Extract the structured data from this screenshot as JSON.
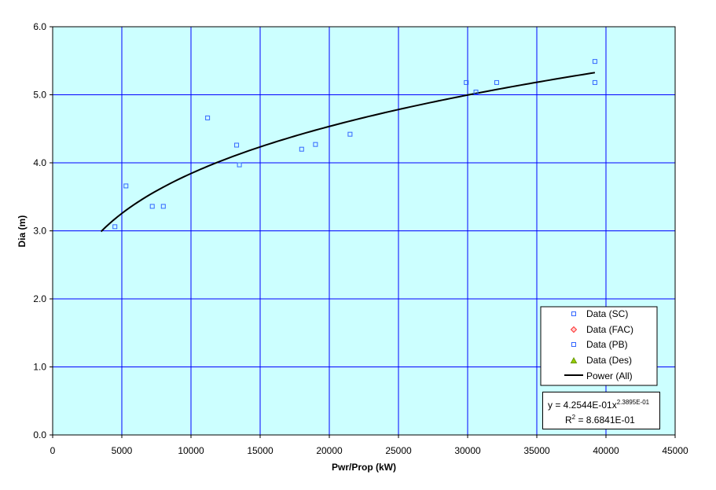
{
  "chart_data": {
    "type": "scatter",
    "xlabel": "Pwr/Prop (kW)",
    "ylabel": "Dia (m)",
    "xlim": [
      0,
      45000
    ],
    "ylim": [
      0,
      6
    ],
    "x_ticks": [
      "0",
      "5000",
      "10000",
      "15000",
      "20000",
      "25000",
      "30000",
      "35000",
      "40000",
      "45000"
    ],
    "y_ticks": [
      "0.0",
      "1.0",
      "2.0",
      "3.0",
      "4.0",
      "5.0",
      "6.0"
    ],
    "grid": true,
    "plot_background": "#ccffff",
    "grid_color": "#0000ff",
    "legend_position": "bottom-right",
    "series": [
      {
        "name": "Data (SC)",
        "marker": "square",
        "color": "#3366ff",
        "x": [
          4500,
          5300,
          7200,
          8000,
          11200,
          13300,
          13500,
          18000,
          19000,
          21500,
          29900,
          30600,
          32100,
          39200,
          39200
        ],
        "y": [
          3.06,
          3.66,
          3.36,
          3.36,
          4.66,
          4.26,
          3.97,
          4.2,
          4.27,
          4.42,
          5.18,
          5.04,
          5.18,
          5.49,
          5.18
        ]
      },
      {
        "name": "Data (FAC)",
        "marker": "diamond",
        "color": "#ff3333",
        "x": [],
        "y": []
      },
      {
        "name": "Data (PB)",
        "marker": "square",
        "color": "#3366ff",
        "x": [],
        "y": []
      },
      {
        "name": "Data (Des)",
        "marker": "triangle",
        "color": "#669900",
        "x": [],
        "y": []
      },
      {
        "name": "Power (All)",
        "marker": "line",
        "color": "#000000",
        "fit": {
          "coefficient": 0.42544,
          "exponent": 0.23895
        },
        "x_range": [
          3500,
          39200
        ]
      }
    ],
    "annotation": {
      "equation_prefix": "y = 4.2544E-01x",
      "equation_exponent": "2.3895E-01",
      "r2_prefix": "R",
      "r2_sup": "2",
      "r2_value": " = 8.6841E-01"
    }
  }
}
